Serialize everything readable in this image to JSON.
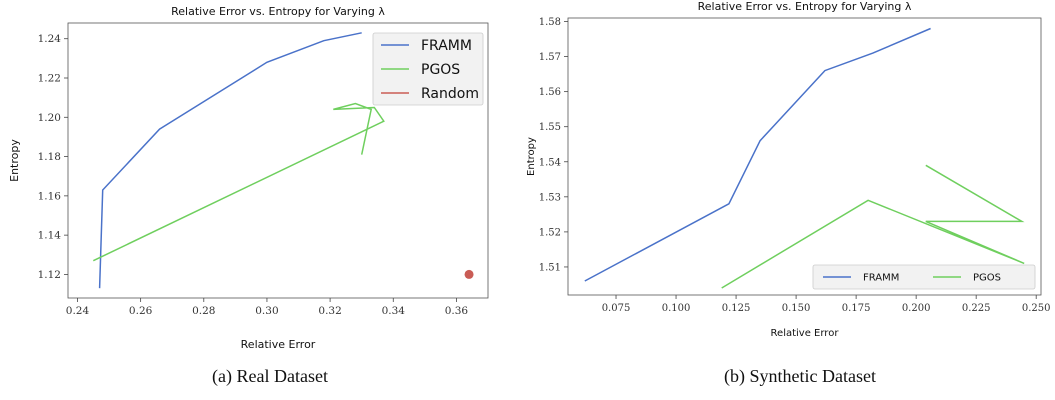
{
  "captions": {
    "a": "(a) Real Dataset",
    "b": "(b) Synthetic Dataset"
  },
  "colors": {
    "FRAMM": "#4a72c9",
    "PGOS": "#6fcf5e",
    "Random": "#c95c55",
    "grid": "#ffffff",
    "plot_bg": "#ffffff",
    "axis": "#333333"
  },
  "chart_data": [
    {
      "type": "line",
      "title": "Relative Error vs. Entropy for Varying λ",
      "xlabel": "Relative Error",
      "ylabel": "Entropy",
      "xlim": [
        0.237,
        0.37
      ],
      "ylim": [
        1.108,
        1.248
      ],
      "xticks": [
        0.24,
        0.26,
        0.28,
        0.3,
        0.32,
        0.34,
        0.36
      ],
      "xtick_labels": [
        "0.24",
        "0.26",
        "0.28",
        "0.30",
        "0.32",
        "0.34",
        "0.36"
      ],
      "yticks": [
        1.12,
        1.14,
        1.16,
        1.18,
        1.2,
        1.22,
        1.24
      ],
      "ytick_labels": [
        "1.12",
        "1.14",
        "1.16",
        "1.18",
        "1.20",
        "1.22",
        "1.24"
      ],
      "legend_position": "top-right",
      "series": [
        {
          "name": "FRAMM",
          "kind": "line",
          "x": [
            0.247,
            0.248,
            0.266,
            0.3,
            0.318,
            0.33
          ],
          "y": [
            1.113,
            1.163,
            1.194,
            1.228,
            1.239,
            1.243
          ]
        },
        {
          "name": "PGOS",
          "kind": "line",
          "x": [
            0.245,
            0.337,
            0.334,
            0.321,
            0.328,
            0.333,
            0.33
          ],
          "y": [
            1.127,
            1.198,
            1.205,
            1.204,
            1.207,
            1.204,
            1.181
          ]
        },
        {
          "name": "Random",
          "kind": "scatter",
          "x": [
            0.364
          ],
          "y": [
            1.12
          ]
        }
      ]
    },
    {
      "type": "line",
      "title": "Relative Error vs. Entropy for Varying λ",
      "xlabel": "Relative Error",
      "ylabel": "Entropy",
      "xlim": [
        0.055,
        0.252
      ],
      "ylim": [
        1.502,
        1.581
      ],
      "xticks": [
        0.075,
        0.1,
        0.125,
        0.15,
        0.175,
        0.2,
        0.225,
        0.25
      ],
      "xtick_labels": [
        "0.075",
        "0.100",
        "0.125",
        "0.150",
        "0.175",
        "0.200",
        "0.225",
        "0.250"
      ],
      "yticks": [
        1.51,
        1.52,
        1.53,
        1.54,
        1.55,
        1.56,
        1.57,
        1.58
      ],
      "ytick_labels": [
        "1.51",
        "1.52",
        "1.53",
        "1.54",
        "1.55",
        "1.56",
        "1.57",
        "1.58"
      ],
      "legend_position": "lower-right",
      "series": [
        {
          "name": "FRAMM",
          "kind": "line",
          "x": [
            0.062,
            0.122,
            0.135,
            0.162,
            0.182,
            0.206
          ],
          "y": [
            1.506,
            1.528,
            1.546,
            1.566,
            1.571,
            1.578
          ]
        },
        {
          "name": "PGOS",
          "kind": "line",
          "x": [
            0.119,
            0.18,
            0.245,
            0.204,
            0.244,
            0.204
          ],
          "y": [
            1.504,
            1.529,
            1.511,
            1.523,
            1.523,
            1.539
          ]
        }
      ]
    }
  ]
}
